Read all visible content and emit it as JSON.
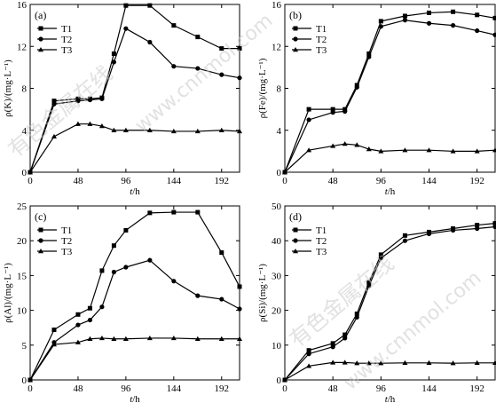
{
  "watermark": {
    "text_cn": "有色金属在线",
    "text_url": "www.cnnmol.com"
  },
  "chart_data": [
    {
      "panel_label": "(a)",
      "type": "line",
      "xlabel_var": "t",
      "xlabel_unit": "/h",
      "ylabel": "ρ(K)/(mg·L⁻¹)",
      "xlim": [
        0,
        210
      ],
      "ylim": [
        0,
        16
      ],
      "xticks": [
        0,
        48,
        96,
        144,
        192
      ],
      "yticks": [
        0,
        4,
        8,
        12,
        16
      ],
      "legend": "top-left",
      "series": [
        {
          "name": "T1",
          "marker": "square",
          "x": [
            0,
            24,
            48,
            60,
            72,
            84,
            96,
            120,
            144,
            168,
            192,
            210
          ],
          "y": [
            0,
            6.8,
            7.0,
            7.0,
            7.1,
            11.3,
            15.9,
            15.9,
            14.0,
            12.9,
            11.8,
            11.8
          ]
        },
        {
          "name": "T2",
          "marker": "circle",
          "x": [
            0,
            24,
            48,
            60,
            72,
            84,
            96,
            120,
            144,
            168,
            192,
            210
          ],
          "y": [
            0,
            6.5,
            6.8,
            6.9,
            7.0,
            10.5,
            13.7,
            12.4,
            10.1,
            9.9,
            9.3,
            9.0
          ]
        },
        {
          "name": "T3",
          "marker": "triangle",
          "x": [
            0,
            24,
            48,
            60,
            72,
            84,
            96,
            120,
            144,
            168,
            192,
            210
          ],
          "y": [
            0,
            3.4,
            4.6,
            4.6,
            4.4,
            4.0,
            4.0,
            4.0,
            3.9,
            3.9,
            4.0,
            3.9
          ]
        }
      ]
    },
    {
      "panel_label": "(b)",
      "type": "line",
      "xlabel_var": "t",
      "xlabel_unit": "/h",
      "ylabel": "ρ(Fe)/(mg·L⁻¹)",
      "xlim": [
        0,
        210
      ],
      "ylim": [
        0,
        16
      ],
      "xticks": [
        0,
        48,
        96,
        144,
        192
      ],
      "yticks": [
        0,
        4,
        8,
        12,
        16
      ],
      "legend": "top-left",
      "series": [
        {
          "name": "T1",
          "marker": "square",
          "x": [
            0,
            24,
            48,
            60,
            72,
            84,
            96,
            120,
            144,
            168,
            192,
            210
          ],
          "y": [
            0,
            6.0,
            6.0,
            6.0,
            8.3,
            11.3,
            14.4,
            14.9,
            15.2,
            15.3,
            15.0,
            14.7
          ]
        },
        {
          "name": "T2",
          "marker": "circle",
          "x": [
            0,
            24,
            48,
            60,
            72,
            84,
            96,
            120,
            144,
            168,
            192,
            210
          ],
          "y": [
            0,
            5.0,
            5.7,
            5.8,
            8.1,
            11.0,
            13.9,
            14.5,
            14.2,
            14.0,
            13.5,
            13.1
          ]
        },
        {
          "name": "T3",
          "marker": "triangle",
          "x": [
            0,
            24,
            48,
            60,
            72,
            84,
            96,
            120,
            144,
            168,
            192,
            210
          ],
          "y": [
            0,
            2.1,
            2.5,
            2.7,
            2.6,
            2.2,
            2.0,
            2.1,
            2.1,
            2.0,
            2.0,
            2.1
          ]
        }
      ]
    },
    {
      "panel_label": "(c)",
      "type": "line",
      "xlabel_var": "t",
      "xlabel_unit": "/h",
      "ylabel": "ρ(Al)/(mg·L⁻¹)",
      "xlim": [
        0,
        210
      ],
      "ylim": [
        0,
        25
      ],
      "xticks": [
        0,
        48,
        96,
        144,
        192
      ],
      "yticks": [
        0,
        5,
        10,
        15,
        20,
        25
      ],
      "legend": "top-left",
      "series": [
        {
          "name": "T1",
          "marker": "square",
          "x": [
            0,
            24,
            48,
            60,
            72,
            84,
            96,
            120,
            144,
            168,
            192,
            210
          ],
          "y": [
            0,
            7.2,
            9.4,
            10.3,
            15.7,
            19.3,
            21.5,
            24.0,
            24.1,
            24.1,
            18.3,
            13.4
          ]
        },
        {
          "name": "T2",
          "marker": "circle",
          "x": [
            0,
            24,
            48,
            60,
            72,
            84,
            96,
            120,
            144,
            168,
            192,
            210
          ],
          "y": [
            0,
            5.4,
            7.9,
            8.6,
            10.5,
            15.5,
            16.2,
            17.2,
            14.2,
            12.1,
            11.6,
            10.2
          ]
        },
        {
          "name": "T3",
          "marker": "triangle",
          "x": [
            0,
            24,
            48,
            60,
            72,
            84,
            96,
            120,
            144,
            168,
            192,
            210
          ],
          "y": [
            0,
            5.1,
            5.4,
            5.9,
            6.0,
            5.9,
            5.9,
            6.0,
            6.0,
            5.9,
            5.9,
            5.9
          ]
        }
      ]
    },
    {
      "panel_label": "(d)",
      "type": "line",
      "xlabel_var": "t",
      "xlabel_unit": "/h",
      "ylabel": "ρ(Si)/(mg·L⁻¹)",
      "xlim": [
        0,
        210
      ],
      "ylim": [
        0,
        50
      ],
      "xticks": [
        0,
        48,
        96,
        144,
        192
      ],
      "yticks": [
        0,
        10,
        20,
        30,
        40,
        50
      ],
      "legend": "top-left",
      "series": [
        {
          "name": "T1",
          "marker": "square",
          "x": [
            0,
            24,
            48,
            60,
            72,
            84,
            96,
            120,
            144,
            168,
            192,
            210
          ],
          "y": [
            0,
            8.5,
            10.5,
            13.0,
            19.0,
            28.0,
            36.0,
            41.5,
            42.5,
            43.5,
            44.5,
            45.0
          ]
        },
        {
          "name": "T2",
          "marker": "circle",
          "x": [
            0,
            24,
            48,
            60,
            72,
            84,
            96,
            120,
            144,
            168,
            192,
            210
          ],
          "y": [
            0,
            7.5,
            9.5,
            12.0,
            18.0,
            27.0,
            35.0,
            40.0,
            42.0,
            43.0,
            43.5,
            44.0
          ]
        },
        {
          "name": "T3",
          "marker": "triangle",
          "x": [
            0,
            24,
            48,
            60,
            72,
            84,
            96,
            120,
            144,
            168,
            192,
            210
          ],
          "y": [
            0,
            4.0,
            5.0,
            5.0,
            4.8,
            4.8,
            4.8,
            4.9,
            4.9,
            4.8,
            4.9,
            4.9
          ]
        }
      ]
    }
  ]
}
